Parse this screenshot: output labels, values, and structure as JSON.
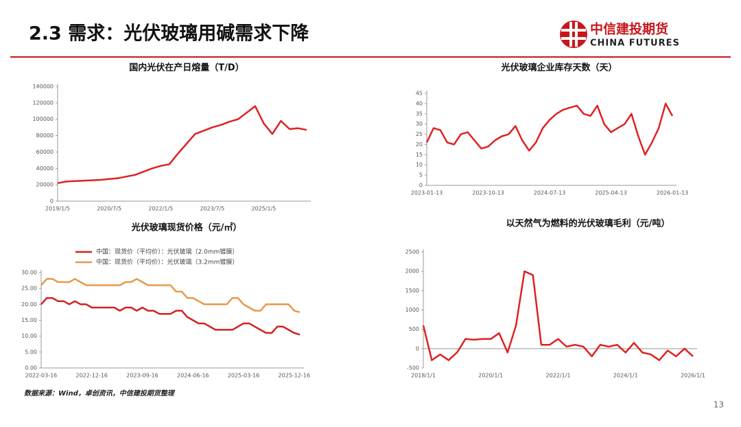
{
  "header": {
    "title": "2.3 需求：光伏玻璃用碱需求下降",
    "logo_cn": "中信建投期货",
    "logo_en": "CHINA FUTURES"
  },
  "footer": {
    "source": "数据来源：Wind，卓创资讯，中信建投期货整理",
    "page_number": "13"
  },
  "chart_data": [
    {
      "type": "line",
      "title": "国内光伏在产日熔量（T/D）",
      "categories": [
        "2019/1/5",
        null,
        null,
        null,
        null,
        null,
        "2020/7/5",
        null,
        null,
        null,
        null,
        null,
        "2022/1/5",
        null,
        null,
        null,
        null,
        null,
        "2023/7/5",
        null,
        null,
        null,
        null,
        null,
        "2025/1/5",
        null,
        null,
        null,
        null,
        null
      ],
      "series": [
        {
          "color": "#e02020",
          "values": [
            22000,
            24000,
            24500,
            25000,
            25500,
            26000,
            27000,
            28000,
            30000,
            32000,
            36000,
            40000,
            43000,
            45000,
            58000,
            70000,
            82000,
            86000,
            90000,
            93000,
            97000,
            100000,
            108000,
            116000,
            95000,
            82000,
            98000,
            88000,
            89000,
            87000
          ]
        }
      ],
      "ylim": [
        0,
        140000
      ],
      "yticks": [
        0,
        20000,
        40000,
        60000,
        80000,
        100000,
        120000,
        140000
      ]
    },
    {
      "type": "line",
      "title": "光伏玻璃企业库存天数（天）",
      "categories": [
        "2023-01-13",
        null,
        null,
        null,
        null,
        null,
        null,
        null,
        null,
        "2023-10-13",
        null,
        null,
        null,
        null,
        null,
        null,
        null,
        null,
        "2024-07-13",
        null,
        null,
        null,
        null,
        null,
        null,
        null,
        null,
        "2025-04-13",
        null,
        null,
        null,
        null,
        null,
        null,
        null,
        null,
        "2026-01-13"
      ],
      "series": [
        {
          "color": "#e02020",
          "values": [
            21,
            28,
            27,
            21,
            20,
            25,
            26,
            22,
            18,
            19,
            22,
            24,
            25,
            29,
            22,
            17,
            21,
            28,
            32,
            35,
            37,
            38,
            39,
            35,
            34,
            39,
            30,
            26,
            28,
            30,
            35,
            24,
            15,
            21,
            28,
            40,
            34
          ]
        }
      ],
      "ylim": [
        0,
        45
      ],
      "yticks": [
        0,
        5,
        10,
        15,
        20,
        25,
        30,
        35,
        40,
        45
      ]
    },
    {
      "type": "line",
      "title": "光伏玻璃现货价格（元/㎡）",
      "categories": [
        "2022-03-16",
        null,
        null,
        null,
        null,
        null,
        null,
        null,
        null,
        "2022-12-16",
        null,
        null,
        null,
        null,
        null,
        null,
        null,
        null,
        "2023-09-16",
        null,
        null,
        null,
        null,
        null,
        null,
        null,
        null,
        "2024-06-16",
        null,
        null,
        null,
        null,
        null,
        null,
        null,
        null,
        "2025-03-16",
        null,
        null,
        null,
        null,
        null,
        null,
        null,
        null,
        "2025-12-16",
        null
      ],
      "series": [
        {
          "name": "中国：现货价（平均价）：光伏玻璃（2.0mm镀膜）",
          "color": "#d42020",
          "values": [
            20,
            22,
            22,
            21,
            21,
            20,
            21,
            20,
            20,
            19,
            19,
            19,
            19,
            19,
            18,
            19,
            19,
            18,
            19,
            18,
            18,
            17,
            17,
            17,
            18,
            18,
            16,
            15,
            14,
            14,
            13,
            12,
            12,
            12,
            12,
            13,
            14,
            14,
            13,
            12,
            11,
            11,
            13,
            13,
            12,
            11,
            10.5
          ]
        },
        {
          "name": "中国：现货价（平均价）：光伏玻璃（3.2mm镀膜）",
          "color": "#e8974a",
          "values": [
            26,
            28,
            28,
            27,
            27,
            27,
            28,
            27,
            26,
            26,
            26,
            26,
            26,
            26,
            26,
            27,
            27,
            28,
            27,
            26,
            26,
            26,
            26,
            26,
            24,
            24,
            22,
            22,
            21,
            20,
            20,
            20,
            20,
            20,
            22,
            22,
            20,
            19,
            18,
            18,
            20,
            20,
            20,
            20,
            20,
            18,
            17.5
          ]
        }
      ],
      "ylim": [
        0,
        30
      ],
      "yticks": [
        {
          "value": 0,
          "label": "0.00"
        },
        {
          "value": 5,
          "label": "5.00"
        },
        {
          "value": 10,
          "label": "10.00"
        },
        {
          "value": 15,
          "label": "15.00"
        },
        {
          "value": 20,
          "label": "20.00"
        },
        {
          "value": 25,
          "label": "25.00"
        },
        {
          "value": 30,
          "label": "30.00"
        }
      ]
    },
    {
      "type": "line",
      "title": "以天然气为燃料的光伏玻璃毛利（元/吨）",
      "categories": [
        "2018/1/1",
        null,
        null,
        null,
        null,
        null,
        null,
        null,
        "2020/1/1",
        null,
        null,
        null,
        null,
        null,
        null,
        null,
        "2022/1/1",
        null,
        null,
        null,
        null,
        null,
        null,
        null,
        "2024/1/1",
        null,
        null,
        null,
        null,
        null,
        null,
        null,
        "2026/1/1"
      ],
      "series": [
        {
          "color": "#e02020",
          "values": [
            600,
            -300,
            -150,
            -300,
            -100,
            250,
            230,
            250,
            250,
            400,
            -100,
            600,
            2000,
            1900,
            100,
            100,
            250,
            50,
            100,
            50,
            -200,
            100,
            50,
            100,
            -100,
            150,
            -100,
            -150,
            -300,
            -50,
            -200,
            0,
            -200
          ]
        }
      ],
      "ylim": [
        -500,
        2500
      ],
      "yticks": [
        -500,
        0,
        500,
        1000,
        1500,
        2000,
        2500
      ]
    }
  ]
}
